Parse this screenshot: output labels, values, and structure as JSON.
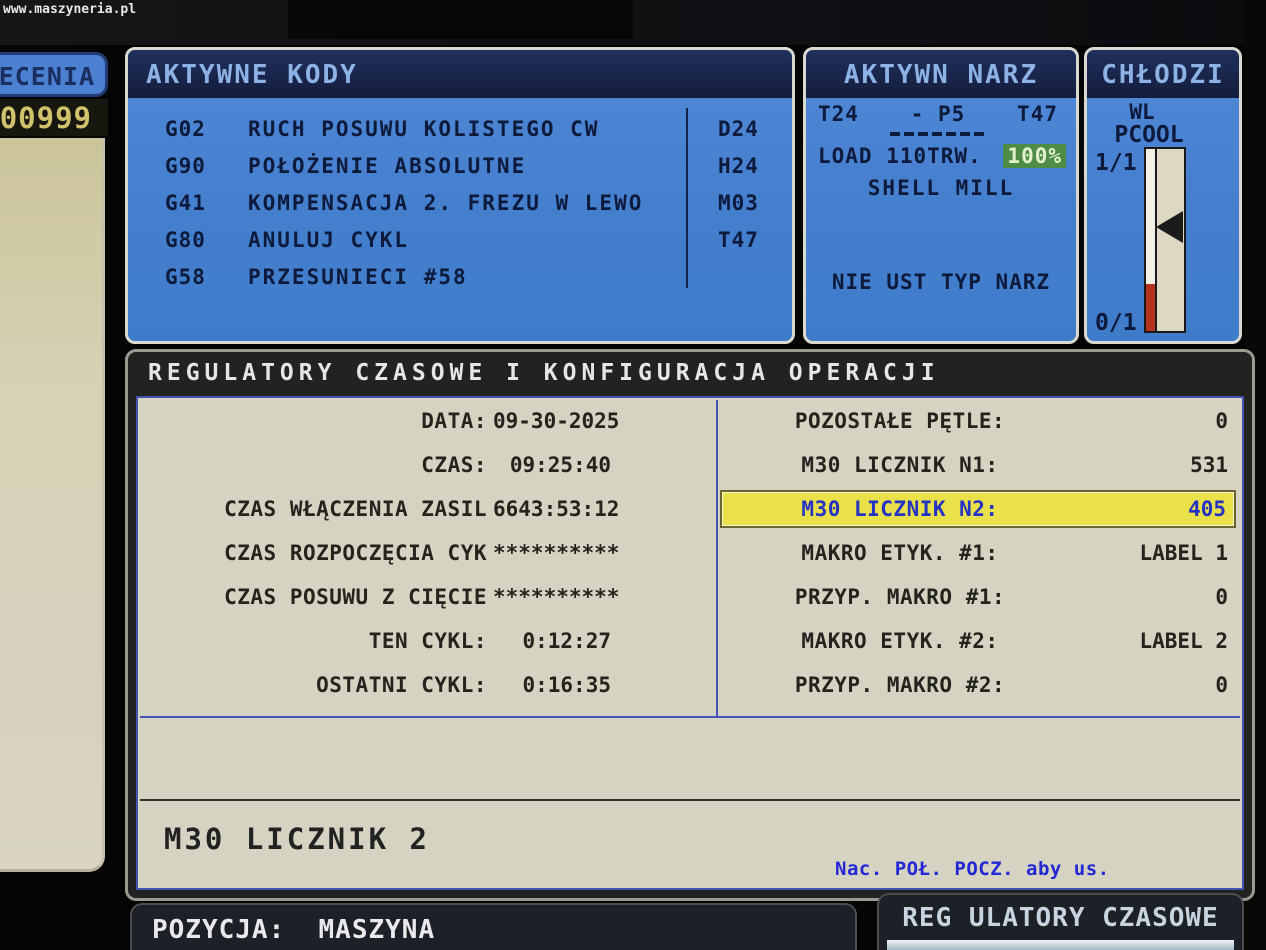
{
  "watermark": "www.maszyneria.pl",
  "sidebar": {
    "tab_label": "ECENIA",
    "program_number": "00999"
  },
  "active_codes": {
    "title": "AKTYWNE KODY",
    "rows": [
      {
        "code": "G02",
        "desc": "RUCH POSUWU KOLISTEGO CW",
        "right": "D24"
      },
      {
        "code": "G90",
        "desc": "POŁOŻENIE ABSOLUTNE",
        "right": "H24"
      },
      {
        "code": "G41",
        "desc": "KOMPENSACJA 2. FREZU W LEWO",
        "right": "M03"
      },
      {
        "code": "G80",
        "desc": "ANULUJ CYKL",
        "right": "T47"
      },
      {
        "code": "G58",
        "desc": "PRZESUNIECI #58",
        "right": ""
      }
    ]
  },
  "active_tool": {
    "title": "AKTYWN NARZ",
    "tool_current": "T24",
    "pocket": "- P5",
    "tool_next": "T47",
    "load_label": "LOAD 110TRW.",
    "load_value": "100%",
    "tool_name": "SHELL MILL",
    "status": "NIE UST TYP NARZ"
  },
  "coolant": {
    "title": "CHŁODZI",
    "state": "WL",
    "mode": "PCOOL",
    "top_ratio": "1/1",
    "bottom_ratio": "0/1"
  },
  "timers": {
    "title": "REGULATORY CZASOWE I KONFIGURACJA OPERACJI",
    "left_rows": [
      {
        "label": "DATA:",
        "value": "09-30-2025"
      },
      {
        "label": "CZAS:",
        "value": "09:25:40"
      },
      {
        "label": "CZAS WŁĄCZENIA ZASIL",
        "value": "6643:53:12"
      },
      {
        "label": "CZAS ROZPOCZĘCIA CYK",
        "value": "**********"
      },
      {
        "label": "CZAS POSUWU Z CIĘCIE",
        "value": "**********"
      },
      {
        "label": "TEN CYKL:",
        "value": "0:12:27"
      },
      {
        "label": "OSTATNI CYKL:",
        "value": "0:16:35"
      }
    ],
    "right_rows": [
      {
        "label": "POZOSTAŁE PĘTLE:",
        "value": "0"
      },
      {
        "label": "M30 LICZNIK N1:",
        "value": "531"
      },
      {
        "label": "M30 LICZNIK N2:",
        "value": "405"
      },
      {
        "label": "MAKRO ETYK. #1:",
        "value": "LABEL 1"
      },
      {
        "label": "PRZYP. MAKRO #1:",
        "value": "0"
      },
      {
        "label": "MAKRO ETYK. #2:",
        "value": "LABEL 2"
      },
      {
        "label": "PRZYP. MAKRO #2:",
        "value": "0"
      }
    ],
    "selected_field": "M30 LICZNIK 2",
    "hint": "Nac. POŁ. POCZ. aby us."
  },
  "footer": {
    "position_label": "POZYCJA:  MASZYNA",
    "right_tab": "REG ULATORY CZASOWE"
  },
  "colors": {
    "panel_blue": "#4680cf",
    "header_navy": "#131d3c",
    "header_text": "#8cb2e6",
    "body_beige": "#d7d3c3",
    "selected_yellow": "#e9e04a",
    "selected_text_blue": "#2433c4",
    "load_green": "#4f8c46",
    "gauge_red": "#b5321e",
    "hint_blue": "#2328d4",
    "program_yellow": "#cfc26a"
  }
}
